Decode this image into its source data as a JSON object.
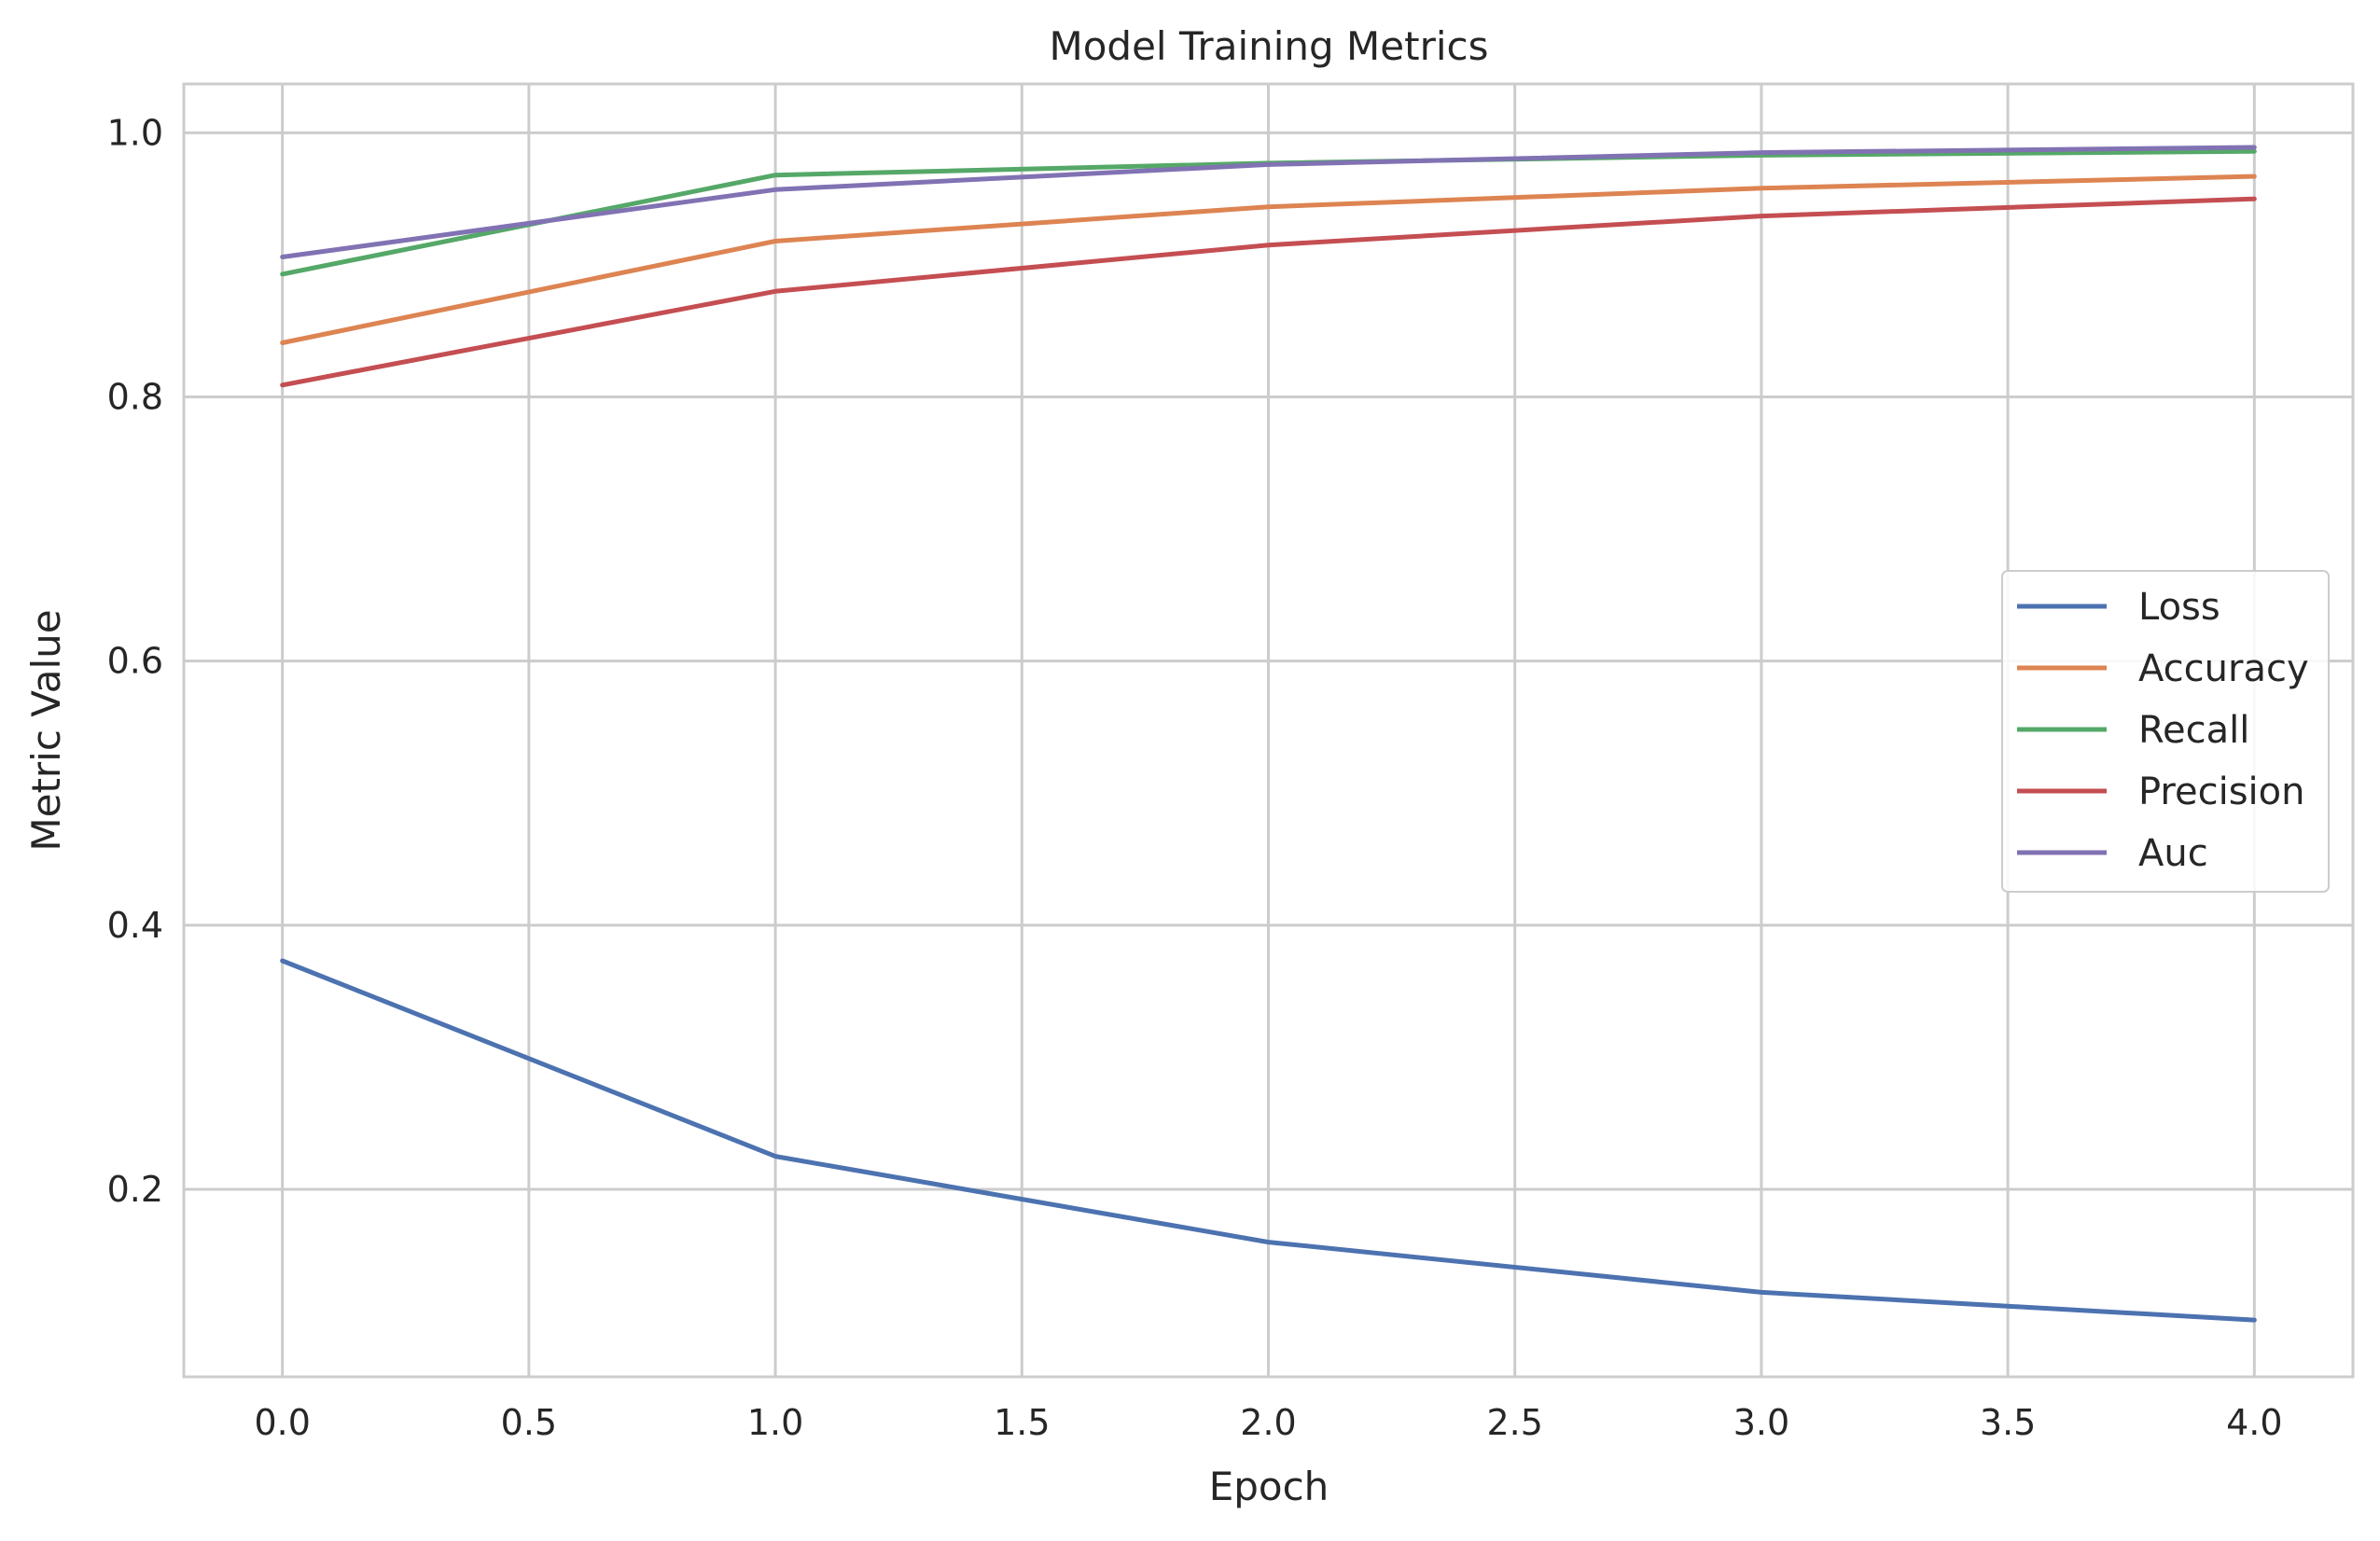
{
  "chart_data": {
    "type": "line",
    "title": "Model Training Metrics",
    "xlabel": "Epoch",
    "ylabel": "Metric Value",
    "x": [
      0,
      1,
      2,
      3,
      4
    ],
    "xlim": [
      -0.2,
      4.2
    ],
    "ylim": [
      0.058,
      1.037
    ],
    "xticks": [
      0.0,
      0.5,
      1.0,
      1.5,
      2.0,
      2.5,
      3.0,
      3.5,
      4.0
    ],
    "xtick_labels": [
      "0.0",
      "0.5",
      "1.0",
      "1.5",
      "2.0",
      "2.5",
      "3.0",
      "3.5",
      "4.0"
    ],
    "yticks": [
      0.2,
      0.4,
      0.6,
      0.8,
      1.0
    ],
    "ytick_labels": [
      "0.2",
      "0.4",
      "0.6",
      "0.8",
      "1.0"
    ],
    "grid": true,
    "legend_position": "center-right",
    "series": [
      {
        "name": "Loss",
        "color": "#4c72b0",
        "values": [
          0.373,
          0.225,
          0.16,
          0.122,
          0.101
        ]
      },
      {
        "name": "Accuracy",
        "color": "#dd8452",
        "values": [
          0.841,
          0.918,
          0.944,
          0.958,
          0.967
        ]
      },
      {
        "name": "Recall",
        "color": "#55a868",
        "values": [
          0.893,
          0.968,
          0.977,
          0.983,
          0.986
        ]
      },
      {
        "name": "Precision",
        "color": "#c44e52",
        "values": [
          0.809,
          0.88,
          0.915,
          0.937,
          0.95
        ]
      },
      {
        "name": "Auc",
        "color": "#8172b3",
        "values": [
          0.906,
          0.957,
          0.976,
          0.985,
          0.989
        ]
      }
    ]
  }
}
